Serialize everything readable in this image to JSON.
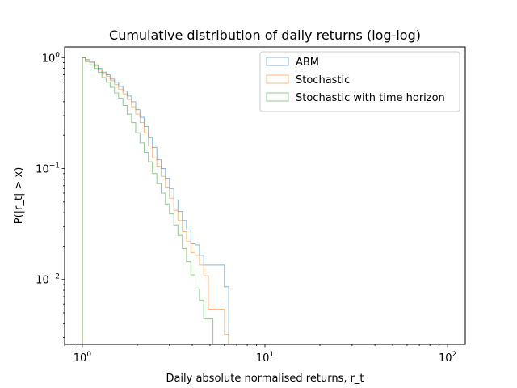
{
  "chart_data": {
    "type": "step-histogram",
    "title": "Cumulative distribution of daily returns (log-log)",
    "xlabel": "Daily absolute normalised returns, r_t",
    "ylabel": "P(|r_t| > x)",
    "xscale": "log",
    "yscale": "log",
    "xlim": [
      0.8,
      125
    ],
    "ylim": [
      0.0026,
      1.25
    ],
    "grid": false,
    "legend_position": "top-right",
    "x_ticks": [
      {
        "value": 1,
        "base": "10",
        "exp": "0"
      },
      {
        "value": 10,
        "base": "10",
        "exp": "1"
      },
      {
        "value": 100,
        "base": "10",
        "exp": "2"
      }
    ],
    "y_ticks": [
      {
        "value": 1,
        "base": "10",
        "exp": "0"
      },
      {
        "value": 0.1,
        "base": "10",
        "exp": "−1"
      },
      {
        "value": 0.01,
        "base": "10",
        "exp": "−2"
      }
    ],
    "series": [
      {
        "name": "ABM",
        "color": "#1f77b4",
        "steps": [
          [
            1.0,
            1.0
          ],
          [
            1.04,
            0.96
          ],
          [
            1.1,
            0.92
          ],
          [
            1.16,
            0.86
          ],
          [
            1.22,
            0.8
          ],
          [
            1.28,
            0.74
          ],
          [
            1.35,
            0.7
          ],
          [
            1.42,
            0.64
          ],
          [
            1.5,
            0.6
          ],
          [
            1.58,
            0.55
          ],
          [
            1.67,
            0.5
          ],
          [
            1.76,
            0.45
          ],
          [
            1.86,
            0.4
          ],
          [
            1.96,
            0.34
          ],
          [
            2.07,
            0.29
          ],
          [
            2.18,
            0.24
          ],
          [
            2.3,
            0.19
          ],
          [
            2.42,
            0.155
          ],
          [
            2.56,
            0.12
          ],
          [
            2.7,
            0.1
          ],
          [
            2.85,
            0.082
          ],
          [
            3.0,
            0.066
          ],
          [
            3.17,
            0.052
          ],
          [
            3.34,
            0.041
          ],
          [
            3.53,
            0.034
          ],
          [
            3.72,
            0.028
          ],
          [
            3.93,
            0.021
          ],
          [
            4.15,
            0.0205
          ],
          [
            4.38,
            0.0165
          ],
          [
            4.62,
            0.0135
          ],
          [
            6.0,
            0.0086
          ],
          [
            6.33,
            0.0026
          ]
        ]
      },
      {
        "name": "Stochastic",
        "color": "#ff7f0e",
        "steps": [
          [
            1.0,
            1.0
          ],
          [
            1.04,
            0.94
          ],
          [
            1.1,
            0.9
          ],
          [
            1.16,
            0.84
          ],
          [
            1.22,
            0.78
          ],
          [
            1.28,
            0.72
          ],
          [
            1.35,
            0.68
          ],
          [
            1.42,
            0.62
          ],
          [
            1.5,
            0.57
          ],
          [
            1.58,
            0.52
          ],
          [
            1.67,
            0.47
          ],
          [
            1.76,
            0.42
          ],
          [
            1.86,
            0.36
          ],
          [
            1.96,
            0.31
          ],
          [
            2.07,
            0.26
          ],
          [
            2.18,
            0.21
          ],
          [
            2.3,
            0.16
          ],
          [
            2.42,
            0.125
          ],
          [
            2.56,
            0.105
          ],
          [
            2.7,
            0.085
          ],
          [
            2.85,
            0.068
          ],
          [
            3.0,
            0.054
          ],
          [
            3.17,
            0.042
          ],
          [
            3.34,
            0.034
          ],
          [
            3.53,
            0.027
          ],
          [
            3.72,
            0.022
          ],
          [
            3.93,
            0.0175
          ],
          [
            4.15,
            0.0165
          ],
          [
            4.38,
            0.0135
          ],
          [
            4.62,
            0.0108
          ],
          [
            4.9,
            0.0054
          ],
          [
            5.19,
            0.0054
          ],
          [
            5.5,
            0.0054
          ],
          [
            6.0,
            0.0032
          ],
          [
            6.33,
            0.0026
          ]
        ]
      },
      {
        "name": "Stochastic with time horizon",
        "color": "#2ca02c",
        "steps": [
          [
            1.0,
            1.0
          ],
          [
            1.04,
            0.92
          ],
          [
            1.1,
            0.86
          ],
          [
            1.16,
            0.8
          ],
          [
            1.22,
            0.74
          ],
          [
            1.28,
            0.66
          ],
          [
            1.35,
            0.6
          ],
          [
            1.42,
            0.54
          ],
          [
            1.5,
            0.48
          ],
          [
            1.58,
            0.43
          ],
          [
            1.67,
            0.37
          ],
          [
            1.76,
            0.31
          ],
          [
            1.86,
            0.26
          ],
          [
            1.96,
            0.21
          ],
          [
            2.07,
            0.17
          ],
          [
            2.18,
            0.14
          ],
          [
            2.3,
            0.115
          ],
          [
            2.42,
            0.09
          ],
          [
            2.56,
            0.073
          ],
          [
            2.7,
            0.06
          ],
          [
            2.85,
            0.048
          ],
          [
            3.0,
            0.039
          ],
          [
            3.17,
            0.031
          ],
          [
            3.34,
            0.025
          ],
          [
            3.53,
            0.019
          ],
          [
            3.72,
            0.0145
          ],
          [
            3.93,
            0.011
          ],
          [
            4.15,
            0.0082
          ],
          [
            4.38,
            0.0065
          ],
          [
            4.62,
            0.0044
          ],
          [
            4.9,
            0.0044
          ],
          [
            5.19,
            0.0026
          ]
        ]
      }
    ]
  }
}
